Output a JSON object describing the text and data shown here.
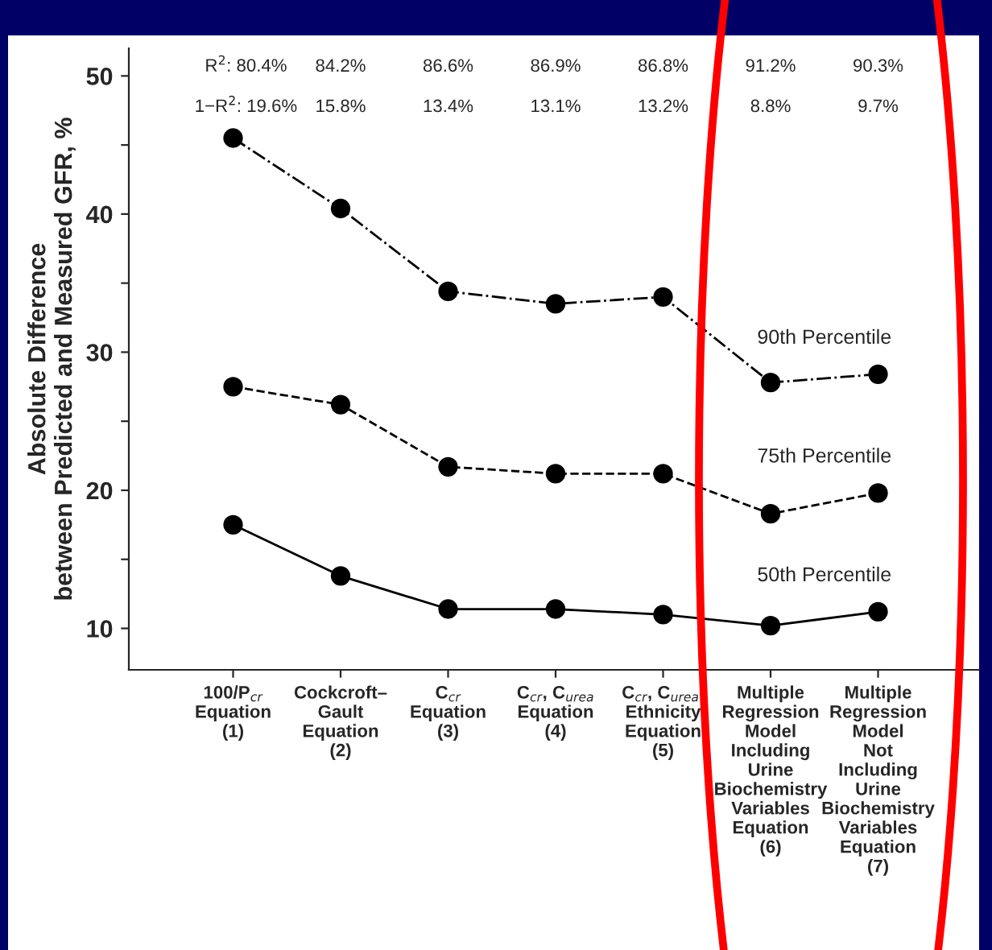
{
  "chart_data": {
    "type": "line",
    "ylabel": "Absolute Difference\nbetween Predicted and Measured GFR, %",
    "categories": [
      "100/P$_{cr}$\nEquation\n(1)",
      "Cockcroft–\nGault\nEquation\n(2)",
      "C$_{cr}$\nEquation\n(3)",
      "C$_{cr}$, C$_{urea}$\nEquation\n(4)",
      "C$_{cr}$, C$_{urea}$,\nEthnicity\nEquation\n(5)",
      "Multiple\nRegression\nModel\nIncluding\nUrine\nBiochemistry\nVariables\nEquation\n(6)",
      "Multiple\nRegression\nModel\nNot\nIncluding\nUrine\nBiochemistry\nVariables\nEquation\n(7)"
    ],
    "series": [
      {
        "name": "90th Percentile",
        "color": "#000000",
        "line_style": "dashdot",
        "values": [
          45.5,
          40.4,
          34.4,
          33.5,
          34.0,
          27.8,
          28.4
        ]
      },
      {
        "name": "75th Percentile",
        "color": "#000000",
        "line_style": "dashed",
        "values": [
          27.5,
          26.2,
          21.7,
          21.2,
          21.2,
          18.3,
          19.8
        ]
      },
      {
        "name": "50th Percentile",
        "color": "#000000",
        "line_style": "solid",
        "values": [
          17.5,
          13.8,
          11.4,
          11.4,
          11.0,
          10.2,
          11.2
        ]
      }
    ],
    "marker": "circle",
    "ylim": [
      7,
      52
    ],
    "yticks": [
      10,
      {
        "value": 15,
        "label": null
      },
      20,
      {
        "value": 25,
        "label": null
      },
      30,
      {
        "value": 35,
        "label": null
      },
      40,
      {
        "value": 45,
        "label": null
      },
      50
    ],
    "grid": false,
    "annotations": [
      "R$^{2}$: 80.4%",
      "84.2%",
      "86.6%",
      "86.9%",
      "86.8%",
      "91.2%",
      "90.3%",
      "1−R$^{2}$: 19.6%",
      "15.8%",
      "13.4%",
      "13.1%",
      "13.2%",
      "8.8%",
      "9.7%"
    ]
  }
}
